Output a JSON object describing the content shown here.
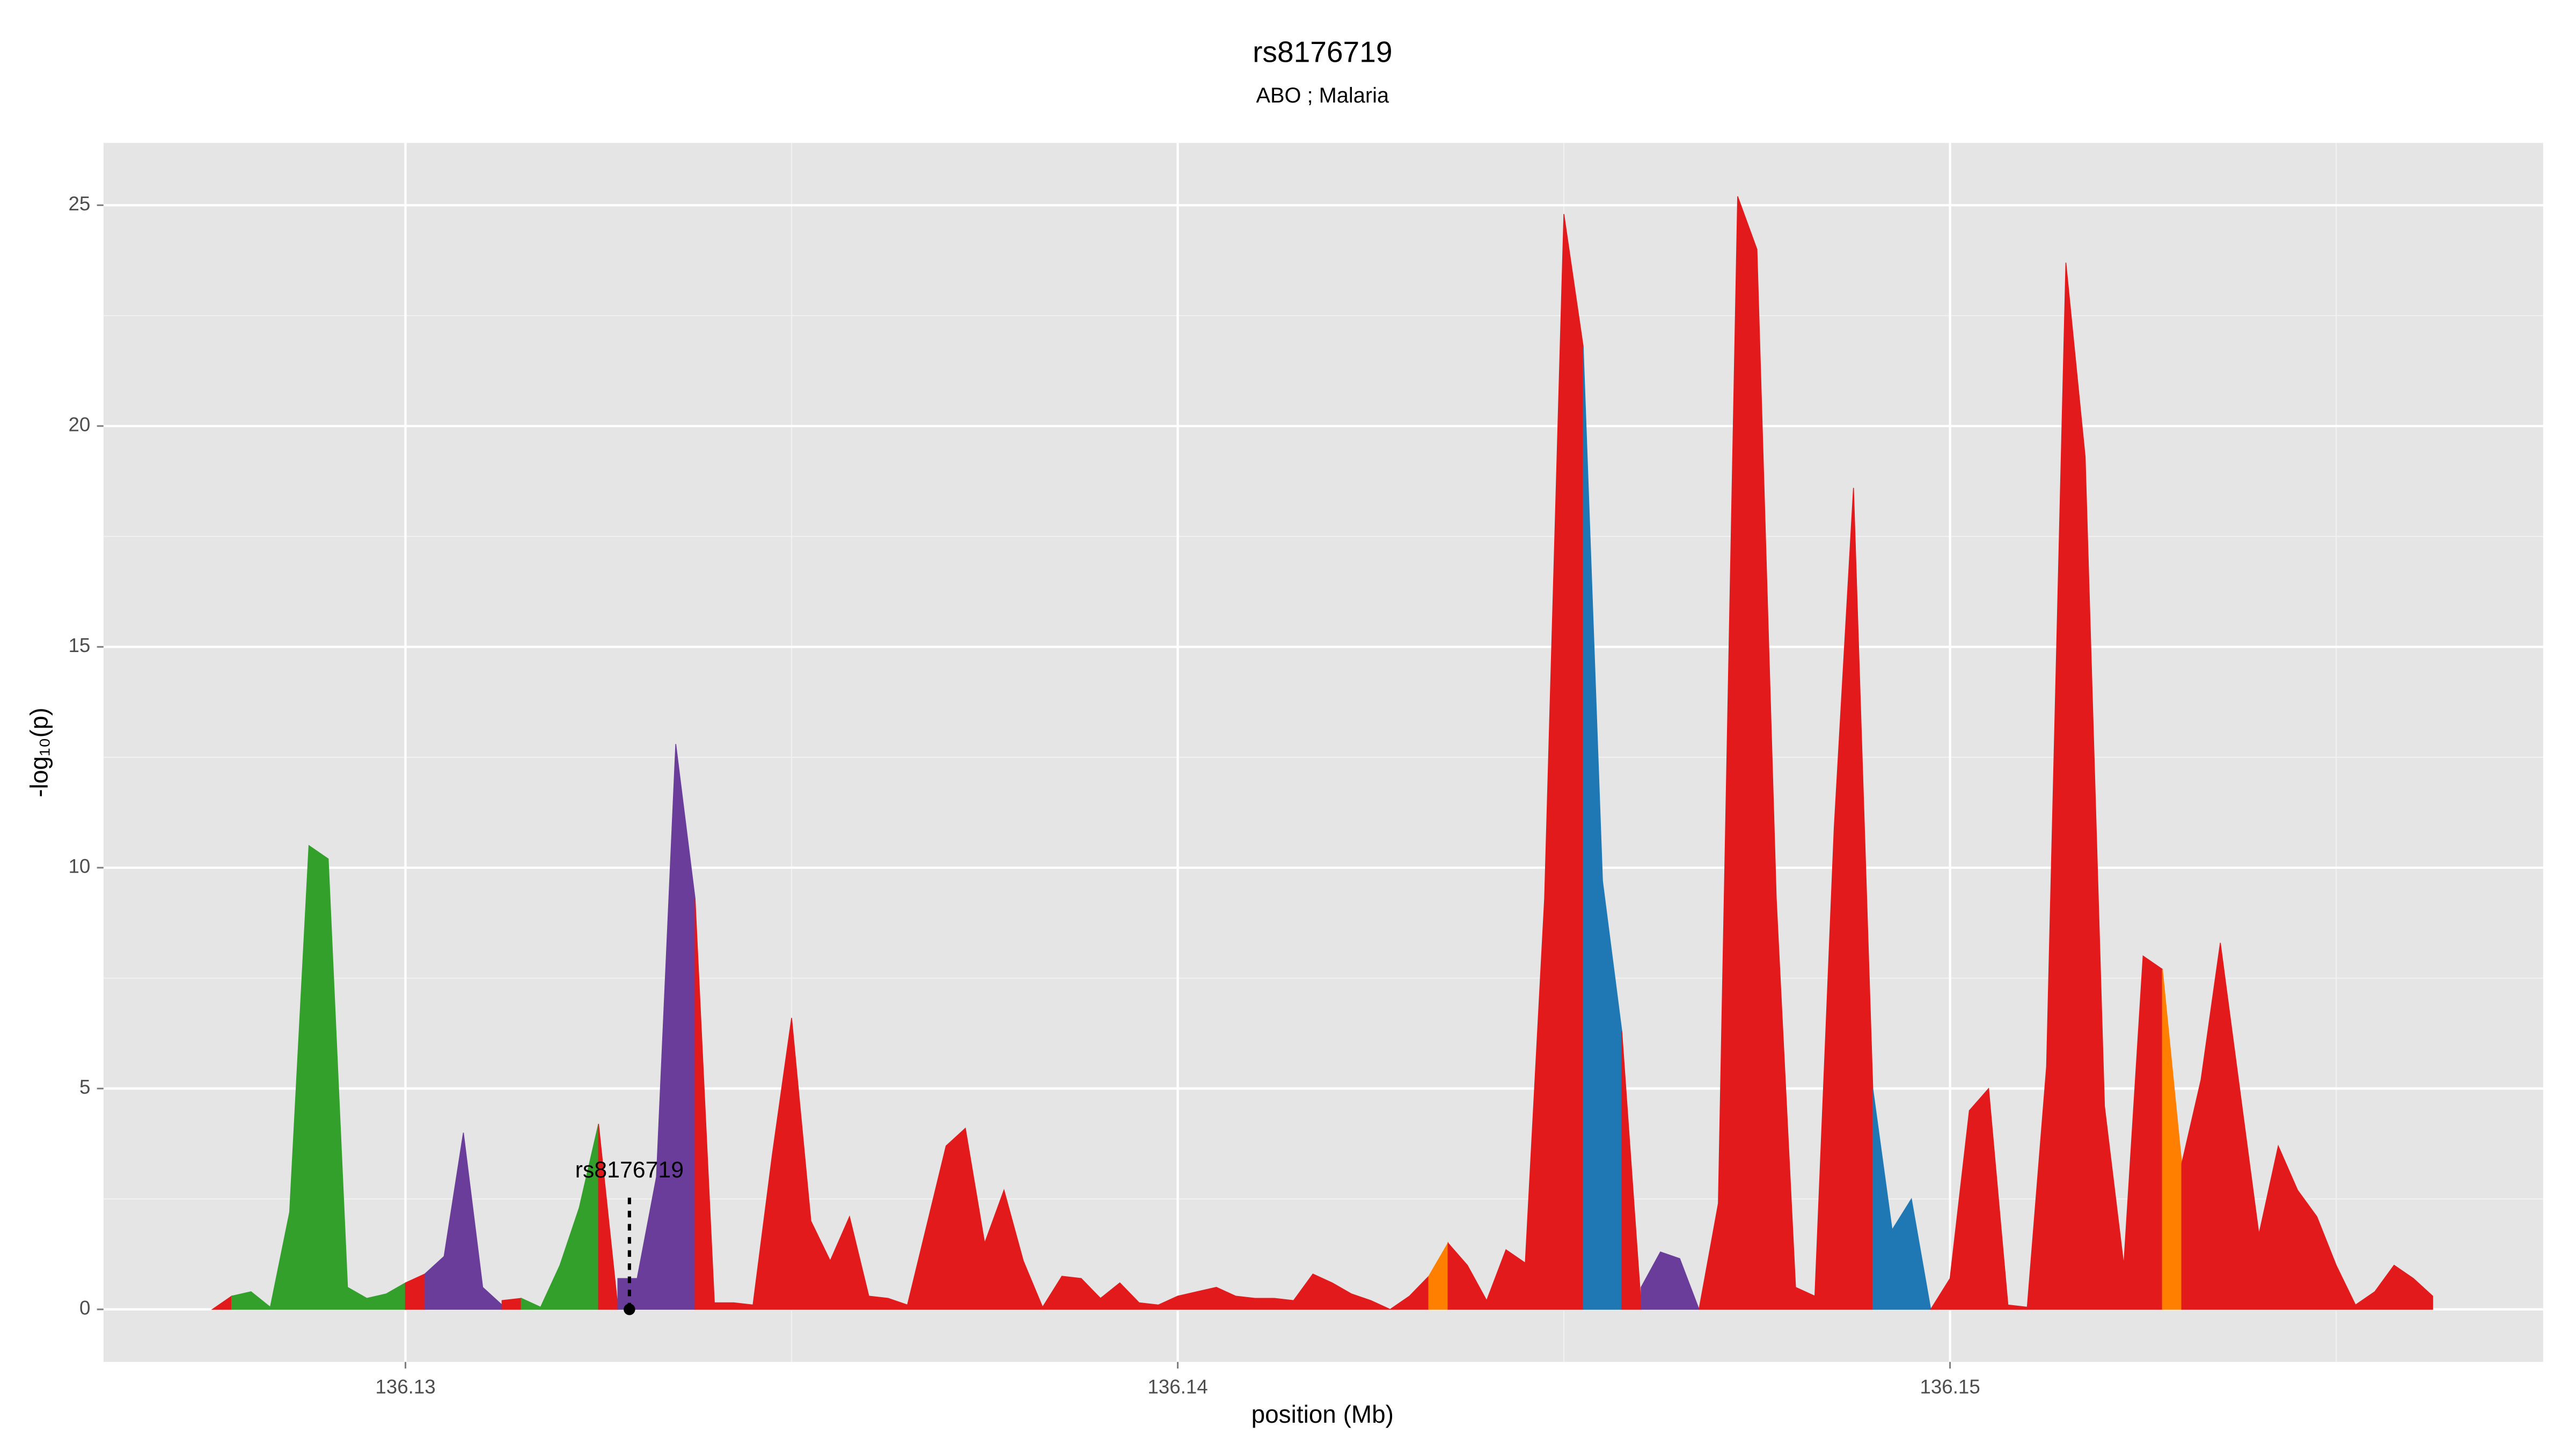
{
  "chart_data": {
    "type": "area",
    "title": "rs8176719",
    "subtitle": "ABO ; Malaria",
    "x_label": "position (Mb)",
    "y_label": "-log₁₀(p)",
    "xlim": [
      136.12609,
      136.15768
    ],
    "ylim": [
      -1.19,
      26.41
    ],
    "xticks": [
      136.13,
      136.14,
      136.15
    ],
    "yticks": [
      0,
      5,
      10,
      15,
      20,
      25
    ],
    "grid": true,
    "minor_grid": true,
    "background": "#e5e5e5",
    "annotation": {
      "text": "rs8176719",
      "x": 136.1329,
      "y": 0
    },
    "series": [
      {
        "color": "#e31a1c",
        "x": [
          136.1275,
          136.12775
        ],
        "values": [
          0,
          0.3
        ]
      },
      {
        "color": "#33a02c",
        "x": [
          136.12775,
          136.128,
          136.12825,
          136.1285,
          136.12875,
          136.129,
          136.12925,
          136.1295,
          136.12975,
          136.13
        ],
        "values": [
          0.3,
          0.4,
          0.05,
          2.2,
          10.5,
          10.2,
          0.5,
          0.25,
          0.35,
          0.6
        ]
      },
      {
        "color": "#e31a1c",
        "x": [
          136.13,
          136.13025
        ],
        "values": [
          0.6,
          0.8
        ]
      },
      {
        "color": "#6a3d9a",
        "x": [
          136.13025,
          136.1305,
          136.13075,
          136.131,
          136.13125
        ],
        "values": [
          0.8,
          1.2,
          4.0,
          0.5,
          0.1
        ]
      },
      {
        "color": "#e31a1c",
        "x": [
          136.13125,
          136.1315
        ],
        "values": [
          0.2,
          0.25
        ]
      },
      {
        "color": "#33a02c",
        "x": [
          136.1315,
          136.13175,
          136.132,
          136.13225,
          136.1325
        ],
        "values": [
          0.25,
          0.05,
          1.0,
          2.3,
          4.2
        ]
      },
      {
        "color": "#e31a1c",
        "x": [
          136.1325,
          136.13275
        ],
        "values": [
          4.2,
          0.05
        ]
      },
      {
        "color": "#6a3d9a",
        "x": [
          136.13275,
          136.133,
          136.13325,
          136.1335,
          136.13375
        ],
        "values": [
          0.7,
          0.7,
          3.0,
          12.8,
          9.3
        ]
      },
      {
        "color": "#e31a1c",
        "x": [
          136.13375,
          136.134,
          136.13425,
          136.1345,
          136.13475,
          136.135,
          136.13525,
          136.1355,
          136.13575,
          136.136,
          136.13625,
          136.1365,
          136.13675,
          136.137,
          136.13725,
          136.1375,
          136.13775,
          136.138,
          136.13825,
          136.1385,
          136.13875,
          136.139,
          136.13925,
          136.1395,
          136.13975,
          136.14,
          136.14025,
          136.1405,
          136.14075,
          136.141,
          136.14125,
          136.1415,
          136.14175,
          136.142,
          136.14225,
          136.1425,
          136.14275,
          136.143,
          136.14325
        ],
        "values": [
          9.3,
          0.15,
          0.15,
          0.1,
          3.5,
          6.6,
          2.0,
          1.1,
          2.1,
          0.3,
          0.25,
          0.1,
          1.9,
          3.7,
          4.1,
          1.5,
          2.7,
          1.1,
          0.05,
          0.75,
          0.7,
          0.25,
          0.6,
          0.15,
          0.1,
          0.3,
          0.4,
          0.5,
          0.3,
          0.25,
          0.25,
          0.2,
          0.8,
          0.6,
          0.35,
          0.2,
          0.0,
          0.3,
          0.75
        ]
      },
      {
        "color": "#ff7f00",
        "x": [
          136.14325,
          136.1435
        ],
        "values": [
          0.75,
          1.5
        ]
      },
      {
        "color": "#e31a1c",
        "x": [
          136.1435,
          136.14375,
          136.144,
          136.14425,
          136.1445,
          136.14475,
          136.145,
          136.14525
        ],
        "values": [
          1.5,
          1.0,
          0.2,
          1.35,
          1.05,
          9.3,
          24.8,
          21.8
        ]
      },
      {
        "color": "#1f78b4",
        "x": [
          136.14525,
          136.1455,
          136.14575
        ],
        "values": [
          21.8,
          9.7,
          6.3
        ]
      },
      {
        "color": "#e31a1c",
        "x": [
          136.14575,
          136.146
        ],
        "values": [
          6.3,
          0.1
        ]
      },
      {
        "color": "#6a3d9a",
        "x": [
          136.146,
          136.14625,
          136.1465,
          136.14675
        ],
        "values": [
          0.5,
          1.3,
          1.15,
          0.0
        ]
      },
      {
        "color": "#e31a1c",
        "x": [
          136.14675,
          136.147,
          136.14725,
          136.1475,
          136.14775,
          136.148,
          136.14825,
          136.1485,
          136.14875,
          136.149
        ],
        "values": [
          0.0,
          2.4,
          25.2,
          24.0,
          9.3,
          0.5,
          0.3,
          10.9,
          18.6,
          5.0
        ]
      },
      {
        "color": "#1f78b4",
        "x": [
          136.149,
          136.14925,
          136.1495,
          136.14975
        ],
        "values": [
          5.0,
          1.8,
          2.5,
          0.0
        ]
      },
      {
        "color": "#e31a1c",
        "x": [
          136.14975,
          136.15,
          136.15025,
          136.1505,
          136.15075,
          136.151,
          136.15125,
          136.1515,
          136.15175,
          136.152,
          136.15225,
          136.1525,
          136.15275
        ],
        "values": [
          0.0,
          0.7,
          4.5,
          5.0,
          0.1,
          0.05,
          5.5,
          23.7,
          19.3,
          4.6,
          1.0,
          8.0,
          7.7
        ]
      },
      {
        "color": "#ff7f00",
        "x": [
          136.15275,
          136.153
        ],
        "values": [
          7.7,
          3.3
        ]
      },
      {
        "color": "#e31a1c",
        "x": [
          136.153,
          136.15325,
          136.1535,
          136.15375,
          136.154,
          136.15425,
          136.1545,
          136.15475,
          136.155,
          136.15525,
          136.1555,
          136.15575,
          136.156,
          136.15625
        ],
        "values": [
          3.3,
          5.2,
          8.3,
          5.0,
          1.7,
          3.7,
          2.7,
          2.1,
          1.0,
          0.1,
          0.4,
          1.0,
          0.7,
          0.3
        ]
      }
    ]
  }
}
